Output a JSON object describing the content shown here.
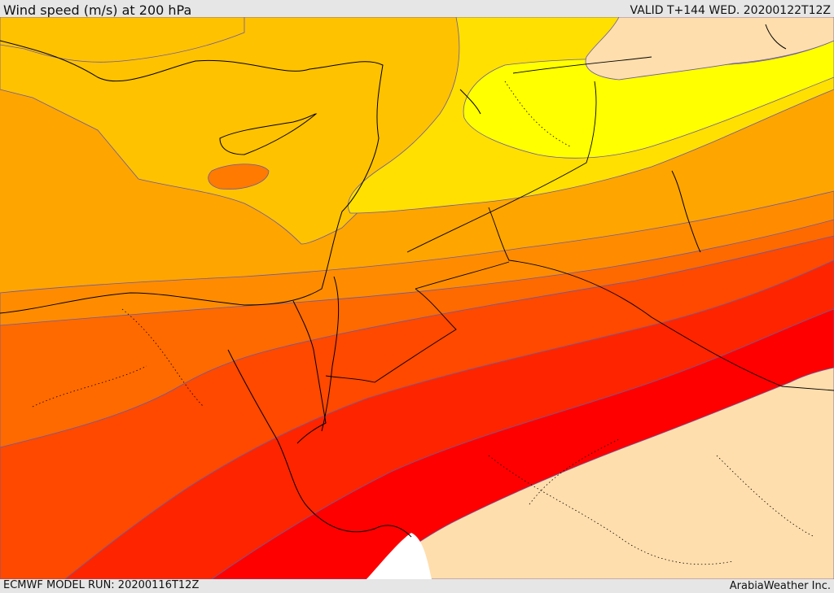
{
  "header": {
    "title": "Wind speed (m/s) at 200 hPa",
    "valid": "VALID T+144 WED. 20200122T12Z"
  },
  "footer": {
    "model_run": "ECMWF MODEL RUN: 20200116T12Z",
    "credit": "ArabiaWeather Inc."
  },
  "map": {
    "variable": "wind speed",
    "units": "m/s",
    "level": "200 hPa",
    "colors": {
      "calm": "#ffdead",
      "band_1": "#ffff00",
      "band_2": "#ffe000",
      "band_3": "#ffc200",
      "band_4": "#ffa500",
      "band_5": "#ff8c00",
      "band_6": "#ff6a00",
      "band_7": "#ff4800",
      "band_8": "#ff2400",
      "band_9": "#ff0000",
      "missing": "#ffffff",
      "coastline": "#000000",
      "contour": "#6b5aa0"
    }
  }
}
